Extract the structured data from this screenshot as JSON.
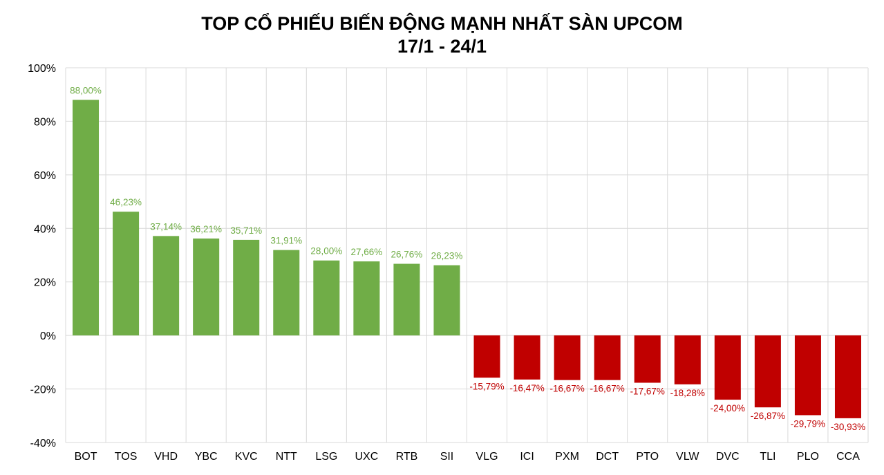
{
  "chart_data": {
    "type": "bar",
    "title": "TOP CỔ PHIẾU BIẾN ĐỘNG MẠNH NHẤT SÀN UPCOM",
    "subtitle": "17/1 - 24/1",
    "xlabel": "",
    "ylabel": "",
    "categories": [
      "BOT",
      "TOS",
      "VHD",
      "YBC",
      "KVC",
      "NTT",
      "LSG",
      "UXC",
      "RTB",
      "SII",
      "VLG",
      "ICI",
      "PXM",
      "DCT",
      "PTO",
      "VLW",
      "DVC",
      "TLI",
      "PLO",
      "CCA"
    ],
    "values": [
      88.0,
      46.23,
      37.14,
      36.21,
      35.71,
      31.91,
      28.0,
      27.66,
      26.76,
      26.23,
      -15.79,
      -16.47,
      -16.67,
      -16.67,
      -17.67,
      -18.28,
      -24.0,
      -26.87,
      -29.79,
      -30.93
    ],
    "data_labels": [
      "88,00%",
      "46,23%",
      "37,14%",
      "36,21%",
      "35,71%",
      "31,91%",
      "28,00%",
      "27,66%",
      "26,76%",
      "26,23%",
      "-15,79%",
      "-16,47%",
      "-16,67%",
      "-16,67%",
      "-17,67%",
      "-18,28%",
      "-24,00%",
      "-26,87%",
      "-29,79%",
      "-30,93%"
    ],
    "ylim": [
      -40,
      100
    ],
    "yticks": [
      100,
      80,
      60,
      40,
      20,
      0,
      -20,
      -40
    ],
    "ytick_labels": [
      "100%",
      "80%",
      "60%",
      "40%",
      "20%",
      "0%",
      "-20%",
      "-40%"
    ],
    "grid": true,
    "legend": "none",
    "colors": {
      "positive": "#70ad47",
      "negative": "#c00000",
      "grid": "#d9d9d9"
    }
  }
}
